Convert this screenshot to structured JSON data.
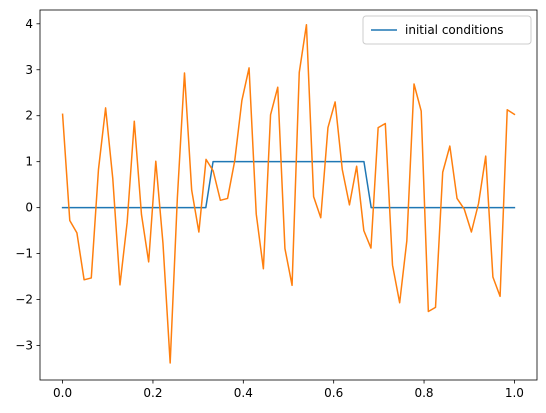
{
  "chart_data": {
    "type": "line",
    "xlim": [
      -0.05,
      1.05
    ],
    "ylim": [
      -3.75,
      4.3
    ],
    "xticks": [
      0.0,
      0.2,
      0.4,
      0.6,
      0.8,
      1.0
    ],
    "xtick_labels": [
      "0.0",
      "0.2",
      "0.4",
      "0.6",
      "0.8",
      "1.0"
    ],
    "yticks": [
      -3,
      -2,
      -1,
      0,
      1,
      2,
      3,
      4
    ],
    "ytick_labels": [
      "−3",
      "−2",
      "−1",
      "0",
      "1",
      "2",
      "3",
      "4"
    ],
    "grid": false,
    "legend_position": "top-right",
    "series": [
      {
        "name": "initial conditions",
        "color": "#1f77b4",
        "in_legend": true,
        "x": [
          0.0,
          0.317,
          0.333,
          0.667,
          0.683,
          1.0
        ],
        "y": [
          0,
          0,
          1,
          1,
          0,
          0
        ]
      },
      {
        "color": "#ff7f0e",
        "in_legend": false,
        "x": [
          0.0,
          0.0159,
          0.0317,
          0.0476,
          0.0635,
          0.0794,
          0.0952,
          0.1111,
          0.127,
          0.1429,
          0.1587,
          0.1746,
          0.1905,
          0.2063,
          0.2222,
          0.2381,
          0.254,
          0.2698,
          0.2857,
          0.3016,
          0.3175,
          0.3333,
          0.3492,
          0.3651,
          0.381,
          0.3968,
          0.4127,
          0.4286,
          0.4444,
          0.4603,
          0.4762,
          0.4921,
          0.5079,
          0.5238,
          0.5397,
          0.5556,
          0.5714,
          0.5873,
          0.6032,
          0.619,
          0.6349,
          0.6508,
          0.6667,
          0.6825,
          0.6984,
          0.7143,
          0.7302,
          0.746,
          0.7619,
          0.7778,
          0.7937,
          0.8095,
          0.8254,
          0.8413,
          0.8571,
          0.873,
          0.8889,
          0.9048,
          0.9206,
          0.9365,
          0.9524,
          0.9683,
          0.9841,
          1.0
        ],
        "y": [
          2.03,
          -0.28,
          -0.55,
          -1.57,
          -1.53,
          0.83,
          2.17,
          0.63,
          -1.68,
          -0.32,
          1.88,
          -0.15,
          -1.18,
          1.01,
          -0.78,
          -3.38,
          0.21,
          2.93,
          0.38,
          -0.53,
          1.05,
          0.8,
          0.16,
          0.2,
          1.02,
          2.33,
          3.04,
          -0.14,
          -1.33,
          2.02,
          2.62,
          -0.89,
          -1.69,
          2.94,
          3.98,
          0.24,
          -0.22,
          1.74,
          2.3,
          0.83,
          0.06,
          0.9,
          -0.5,
          -0.88,
          1.74,
          1.83,
          -1.25,
          -2.07,
          -0.72,
          2.69,
          2.1,
          -2.26,
          -2.17,
          0.77,
          1.34,
          0.2,
          -0.03,
          -0.53,
          0.09,
          1.12,
          -1.51,
          -1.93,
          2.13,
          2.03
        ]
      }
    ]
  }
}
